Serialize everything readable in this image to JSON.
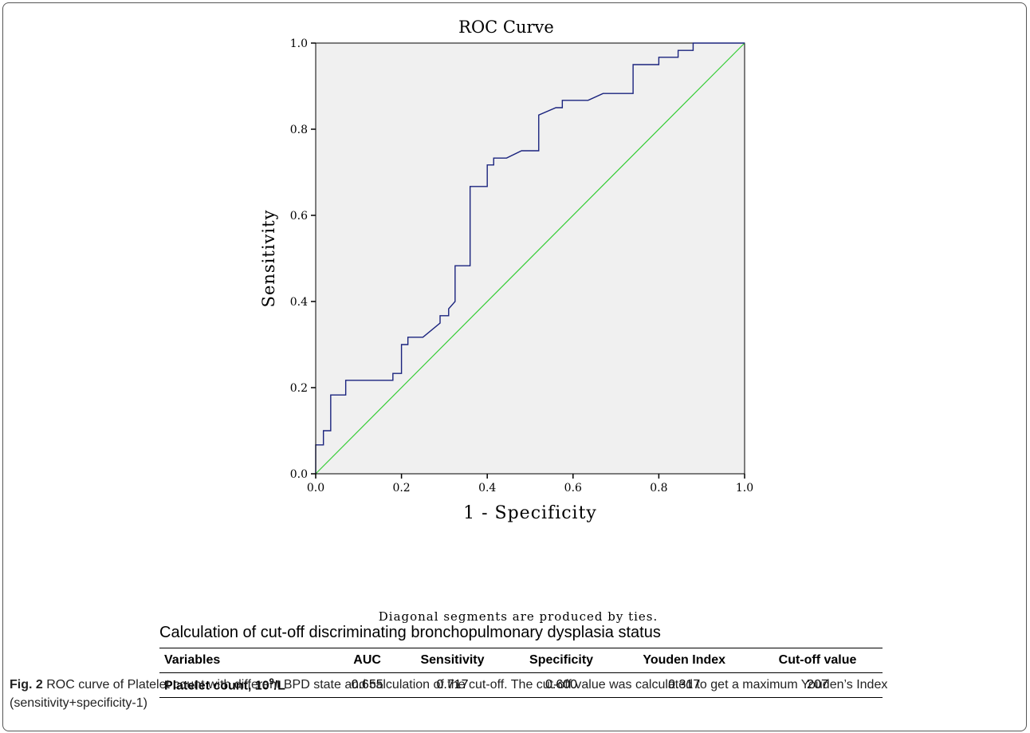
{
  "chart_data": {
    "type": "line",
    "title": "ROC Curve",
    "xlabel": "1 - Specificity",
    "ylabel": "Sensitivity",
    "xlim": [
      0,
      1
    ],
    "ylim": [
      0,
      1
    ],
    "x_ticks": [
      "0.0",
      "0.2",
      "0.4",
      "0.6",
      "0.8",
      "1.0"
    ],
    "y_ticks": [
      "0.0",
      "0.2",
      "0.4",
      "0.6",
      "0.8",
      "1.0"
    ],
    "grid": false,
    "background": "#f0f0f0",
    "series": [
      {
        "color": "#1a237e",
        "x": [
          0,
          0,
          0.018,
          0.018,
          0.035,
          0.035,
          0.07,
          0.07,
          0.18,
          0.18,
          0.2,
          0.2,
          0.215,
          0.215,
          0.25,
          0.29,
          0.29,
          0.31,
          0.31,
          0.325,
          0.325,
          0.36,
          0.36,
          0.4,
          0.4,
          0.415,
          0.415,
          0.445,
          0.48,
          0.52,
          0.52,
          0.56,
          0.575,
          0.575,
          0.635,
          0.67,
          0.74,
          0.74,
          0.8,
          0.8,
          0.845,
          0.845,
          0.88,
          0.88,
          1
        ],
        "y": [
          0,
          0.067,
          0.067,
          0.1,
          0.1,
          0.183,
          0.183,
          0.217,
          0.217,
          0.233,
          0.233,
          0.3,
          0.3,
          0.317,
          0.317,
          0.35,
          0.367,
          0.367,
          0.383,
          0.4,
          0.483,
          0.483,
          0.667,
          0.667,
          0.717,
          0.717,
          0.733,
          0.733,
          0.75,
          0.75,
          0.833,
          0.85,
          0.85,
          0.867,
          0.867,
          0.883,
          0.883,
          0.95,
          0.95,
          0.967,
          0.967,
          0.983,
          0.983,
          1,
          1
        ]
      },
      {
        "color": "#33cc33",
        "x": [
          0,
          1
        ],
        "y": [
          0,
          1
        ]
      }
    ],
    "note": "Diagonal segments are produced by ties."
  },
  "table": {
    "title": "Calculation of cut-off discriminating bronchopulmonary dysplasia status",
    "headers": [
      "Variables",
      "AUC",
      "Sensitivity",
      "Specificity",
      "Youden Index",
      "Cut-off value"
    ],
    "row_label_main": "Platelet count, 10",
    "row_label_sup": "9",
    "row_label_tail": "/L",
    "values": [
      "0.655",
      "0.717",
      "0.600",
      "0.317",
      "207"
    ]
  },
  "caption": {
    "label": "Fig. 2",
    "text": " ROC curve of Platelet count with different BPD state and calculation of the cut-off. The cut-off value was calculated to get a maximum Youden’s Index (sensitivity+specificity-1)"
  }
}
